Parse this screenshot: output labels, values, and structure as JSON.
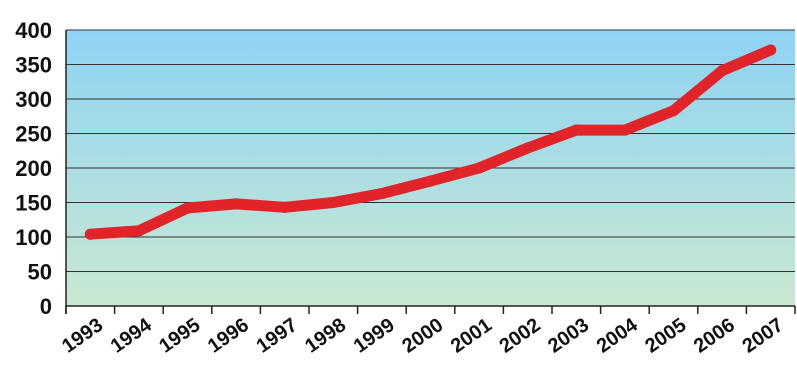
{
  "chart_data": {
    "type": "line",
    "title": "",
    "xlabel": "",
    "ylabel": "",
    "ylim": [
      0,
      400
    ],
    "yticks": [
      "0",
      "50",
      "100",
      "150",
      "200",
      "250",
      "300",
      "350",
      "400"
    ],
    "x": [
      "1993",
      "1994",
      "1995",
      "1996",
      "1997",
      "1998",
      "1999",
      "2000",
      "2001",
      "2002",
      "2003",
      "2004",
      "2005",
      "2006",
      "2007"
    ],
    "series": [
      {
        "values": [
          104,
          109,
          142,
          148,
          143,
          150,
          163,
          181,
          200,
          229,
          255,
          255,
          283,
          341,
          371
        ]
      }
    ],
    "grid": true,
    "legend": "none",
    "colors": {
      "line": "#e0242a",
      "background_top": "#8fd3f4",
      "background_bottom": "#c9e8d2",
      "grid": "#333333"
    }
  }
}
